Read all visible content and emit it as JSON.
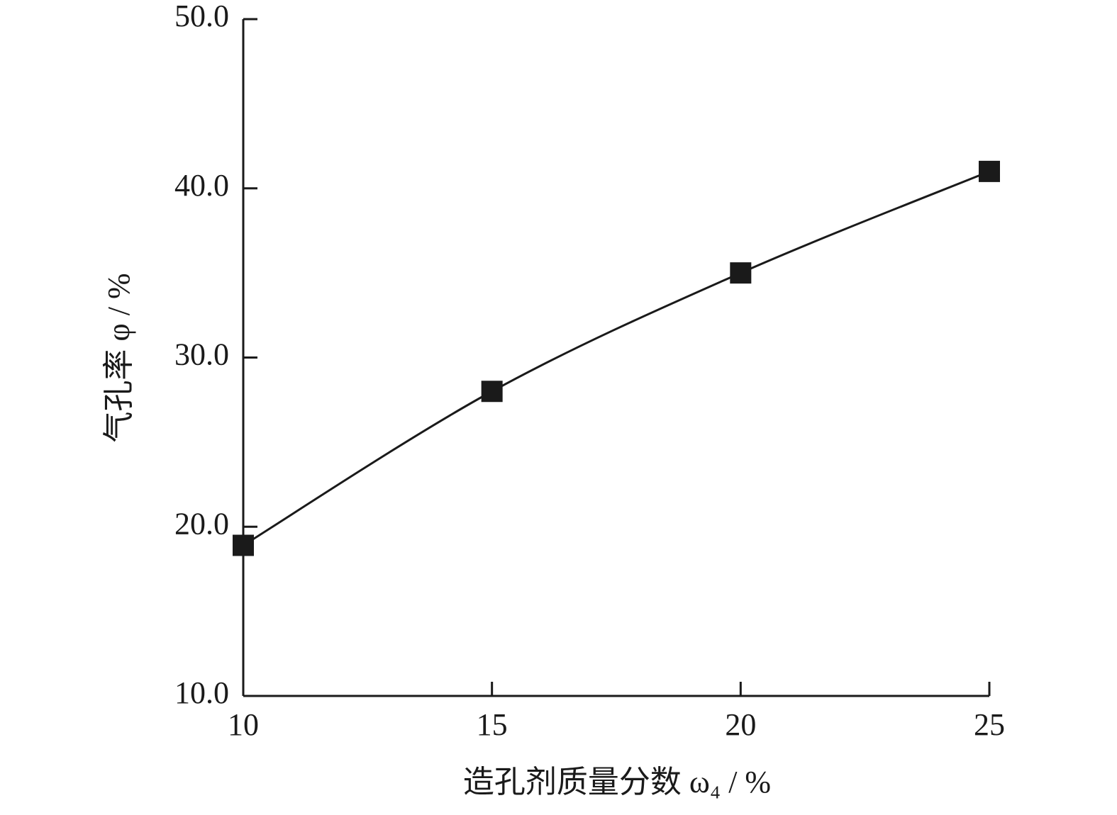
{
  "chart_data": {
    "type": "line",
    "x_label": "造孔剂质量分数 ω₄ / %",
    "y_label": "气孔率 φ / %",
    "x": [
      10,
      15,
      20,
      25
    ],
    "series": [
      {
        "color": "#1a1a1a",
        "values": [
          18.9,
          28.0,
          35.0,
          41.0
        ]
      }
    ],
    "xlim": [
      10,
      25
    ],
    "xticks": [
      10,
      15,
      20,
      25
    ],
    "ylim": [
      10,
      50
    ],
    "yticks": [
      {
        "value": 10,
        "label": "10.0"
      },
      {
        "value": 20,
        "label": "20.0"
      },
      {
        "value": 30,
        "label": "30.0"
      },
      {
        "value": 40,
        "label": "40.0"
      },
      {
        "value": 50,
        "label": "50.0"
      }
    ],
    "smooth": true,
    "marker": "square",
    "grid": false
  }
}
